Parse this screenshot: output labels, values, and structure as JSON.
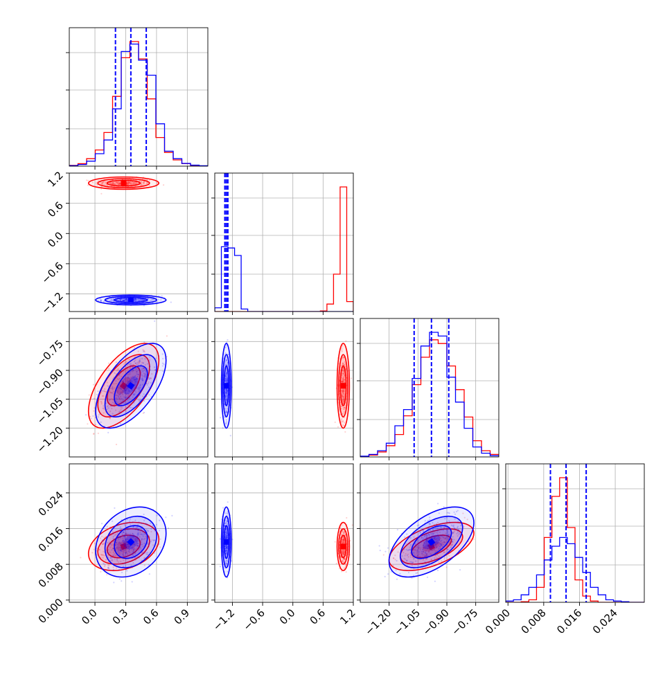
{
  "figure": {
    "type": "corner-plot",
    "grid": true
  },
  "colors": {
    "red": "#ff0000",
    "blue": "#0000ff",
    "grid": "#b0b0b0",
    "axis": "#000000"
  },
  "chart_data": {
    "type": "corner",
    "parameters": [
      {
        "range": [
          -0.25,
          1.1
        ],
        "ticks": [
          "0.0",
          "0.3",
          "0.6",
          "0.9"
        ],
        "tick_values": [
          0.0,
          0.3,
          0.6,
          0.9
        ]
      },
      {
        "range": [
          -1.55,
          1.2
        ],
        "ticks": [
          "−1.2",
          "−0.6",
          "0.0",
          "0.6",
          "1.2"
        ],
        "tick_values": [
          -1.2,
          -0.6,
          0.0,
          0.6,
          1.2
        ]
      },
      {
        "range": [
          -1.35,
          -0.63
        ],
        "ticks": [
          "−1.20",
          "−1.05",
          "−0.90",
          "−0.75"
        ],
        "tick_values": [
          -1.2,
          -1.05,
          -0.9,
          -0.75
        ]
      },
      {
        "range": [
          -0.0005,
          0.0305
        ],
        "ticks": [
          "0.000",
          "0.008",
          "0.016",
          "0.024"
        ],
        "tick_values": [
          0.0,
          0.008,
          0.016,
          0.024
        ]
      }
    ],
    "series": [
      {
        "color": "red",
        "mean": [
          0.28,
          1.0,
          -0.98,
          0.012
        ],
        "std": [
          0.14,
          0.05,
          0.09,
          0.0022
        ],
        "corr": {
          "0-2": 0.6,
          "2-3": 0.55,
          "0-3": 0.3
        }
      },
      {
        "color": "blue",
        "mean": [
          0.35,
          -1.32,
          -0.98,
          0.013
        ],
        "std": [
          0.14,
          0.04,
          0.09,
          0.0032
        ],
        "corr": {
          "0-2": 0.6,
          "2-3": 0.55,
          "0-3": 0.25
        }
      }
    ],
    "quantile_lines": {
      "color": "blue",
      "values": [
        [
          0.2,
          0.35,
          0.5
        ],
        [
          -1.35,
          -1.32,
          -1.29
        ],
        [
          -1.07,
          -0.98,
          -0.89
        ],
        [
          0.0095,
          0.013,
          0.0175
        ]
      ]
    },
    "histograms": [
      {
        "red": [
          0.6,
          2,
          6,
          13,
          27,
          56,
          87,
          100,
          86,
          54,
          23,
          11,
          5,
          2,
          0.6,
          0.2
        ],
        "blue": [
          0.4,
          1.3,
          4,
          10,
          21,
          46,
          92,
          98,
          85,
          73,
          34,
          12,
          6,
          2.2,
          0.8,
          0.3
        ]
      },
      {
        "red": [
          0,
          0,
          0,
          0,
          0,
          0,
          0,
          0,
          0,
          0,
          0,
          0,
          0,
          0,
          0,
          0,
          0.5,
          6,
          30,
          100,
          8
        ],
        "blue": [
          3,
          52,
          51,
          45,
          2,
          0,
          0,
          0,
          0,
          0,
          0,
          0,
          0,
          0,
          0,
          0,
          0,
          0,
          0,
          0,
          0
        ]
      },
      {
        "red": [
          0.5,
          1.5,
          4,
          9,
          18,
          33,
          58,
          80,
          94,
          91,
          73,
          54,
          32,
          13,
          5,
          2
        ],
        "blue": [
          0.6,
          2,
          5,
          11,
          25,
          38,
          63,
          89,
          100,
          97,
          64,
          44,
          23,
          8,
          3,
          1
        ]
      },
      {
        "red": [
          0,
          0,
          0.5,
          2,
          12,
          52,
          85,
          100,
          60,
          18,
          5,
          1,
          0,
          0,
          0,
          0,
          0,
          0
        ],
        "blue": [
          1,
          2,
          6,
          12,
          22,
          34,
          45,
          52,
          47,
          36,
          24,
          12,
          6,
          2,
          1,
          0.5,
          0,
          0
        ]
      }
    ]
  }
}
